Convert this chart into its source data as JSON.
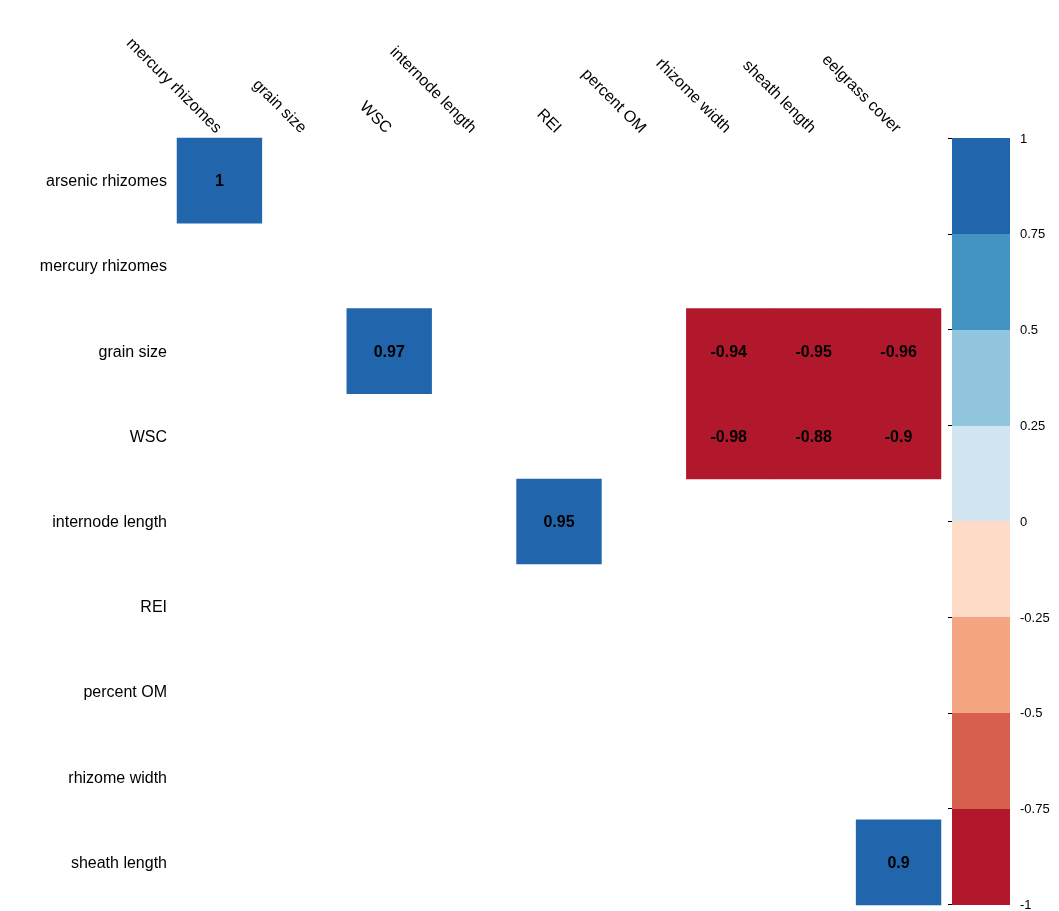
{
  "chart_data": {
    "type": "heatmap",
    "categories": [
      "mercury rhizomes",
      "grain size",
      "WSC",
      "internode length",
      "REI",
      "percent OM",
      "rhizome width",
      "sheath length",
      "eelgrass cover"
    ],
    "y_categories": [
      "arsenic rhizomes",
      "mercury rhizomes",
      "grain size",
      "WSC",
      "internode length",
      "REI",
      "percent OM",
      "rhizome width",
      "sheath length"
    ],
    "cells": [
      [
        1,
        null,
        null,
        null,
        null,
        null,
        null,
        null,
        null
      ],
      [
        null,
        null,
        null,
        null,
        null,
        null,
        null,
        null,
        null
      ],
      [
        null,
        null,
        0.97,
        null,
        null,
        null,
        -0.94,
        -0.95,
        -0.96
      ],
      [
        null,
        null,
        null,
        null,
        null,
        null,
        -0.98,
        -0.88,
        -0.9
      ],
      [
        null,
        null,
        null,
        null,
        0.95,
        null,
        null,
        null,
        null
      ],
      [
        null,
        null,
        null,
        null,
        null,
        null,
        null,
        null,
        null
      ],
      [
        null,
        null,
        null,
        null,
        null,
        null,
        null,
        null,
        null
      ],
      [
        null,
        null,
        null,
        null,
        null,
        null,
        null,
        null,
        null
      ],
      [
        null,
        null,
        null,
        null,
        null,
        null,
        null,
        null,
        0.9
      ]
    ],
    "clim": [
      -1,
      1
    ],
    "cticks": [
      -1,
      -0.75,
      -0.5,
      -0.25,
      0,
      0.25,
      0.5,
      0.75,
      1
    ],
    "data_labels": true
  }
}
